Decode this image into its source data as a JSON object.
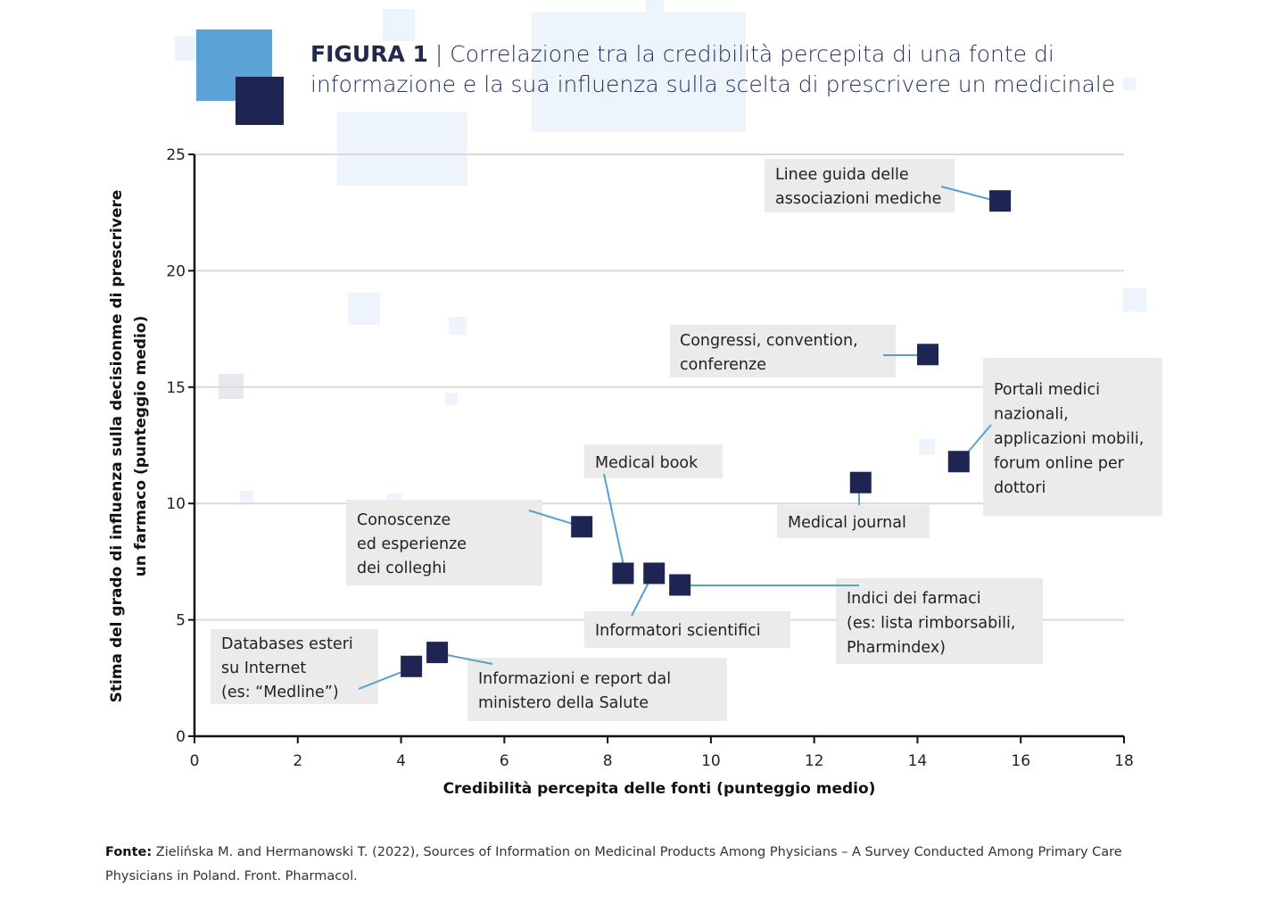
{
  "figure": {
    "label": "FIGURA 1",
    "separator": " | ",
    "title": "Correlazione tra la credibilità percepita di una fonte di informazione e la sua influenza sulla scelta di prescrivere un medicinale"
  },
  "source": {
    "prefix": "Fonte:",
    "text": " Zielińska M. and Hermanowski T. (2022), Sources of Information on Medicinal Products Among Physicians – A Survey Conducted Among Primary Care Physicians in Poland. Front. Pharmacol."
  },
  "colors": {
    "marker": "#1f2552",
    "leader": "#5b9fd0",
    "label_box": "#ebebeb",
    "grid": "#d9d9d9",
    "axis": "#111111",
    "deco_blue": "#5ba3d6",
    "deco_navy": "#1f2552",
    "deco_light": "#eef4fb"
  },
  "chart_data": {
    "type": "scatter",
    "title": "Correlazione tra la credibilità percepita di una fonte di informazione e la sua influenza sulla scelta di prescrivere un medicinale",
    "xlabel": "Credibilità percepita delle fonti (punteggio medio)",
    "ylabel": [
      "Stima del grado di influenza sulla decisionme di prescrivere",
      "un farmaco (punteggio medio)"
    ],
    "xlim": [
      0,
      18
    ],
    "ylim": [
      0,
      25
    ],
    "xticks": [
      0,
      2,
      4,
      6,
      8,
      10,
      12,
      14,
      16,
      18
    ],
    "yticks": [
      0,
      5,
      10,
      15,
      20,
      25
    ],
    "grid": "horizontal",
    "points": [
      {
        "label": [
          "Linee guida delle",
          "associazioni mediche"
        ],
        "x": 15.6,
        "y": 23.0
      },
      {
        "label": [
          "Congressi, convention,",
          "conferenze"
        ],
        "x": 14.2,
        "y": 16.4
      },
      {
        "label": [
          "Portali medici",
          "nazionali,",
          "applicazioni mobili,",
          "forum online per",
          "dottori"
        ],
        "x": 14.8,
        "y": 11.8
      },
      {
        "label": [
          "Medical journal"
        ],
        "x": 12.9,
        "y": 10.9
      },
      {
        "label": [
          "Conoscenze",
          "ed esperienze",
          "dei colleghi"
        ],
        "x": 7.5,
        "y": 9.0
      },
      {
        "label": [
          "Medical book"
        ],
        "x": 8.3,
        "y": 7.0
      },
      {
        "label": [
          "Informatori scientifici"
        ],
        "x": 8.9,
        "y": 7.0
      },
      {
        "label": [
          "Indici dei farmaci",
          "(es: lista rimborsabili,",
          "Pharmindex)"
        ],
        "x": 9.4,
        "y": 6.5
      },
      {
        "label": [
          "Databases esteri",
          "su Internet",
          "(es: “Medline”)"
        ],
        "x": 4.2,
        "y": 3.0
      },
      {
        "label": [
          "Informazioni e report dal",
          "ministero della Salute"
        ],
        "x": 4.7,
        "y": 3.6
      }
    ]
  }
}
